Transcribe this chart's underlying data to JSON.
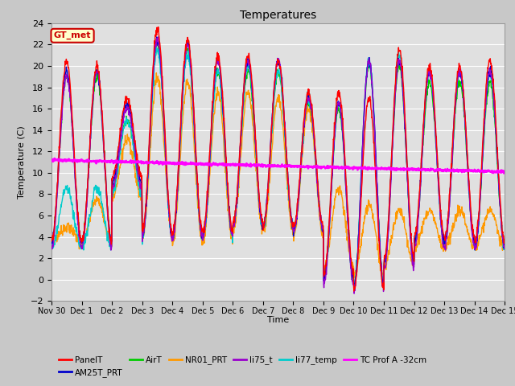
{
  "title": "Temperatures",
  "xlabel": "Time",
  "ylabel": "Temperature (C)",
  "ylim": [
    -2,
    24
  ],
  "yticks": [
    -2,
    0,
    2,
    4,
    6,
    8,
    10,
    12,
    14,
    16,
    18,
    20,
    22,
    24
  ],
  "annotation_text": "GT_met",
  "annotation_facecolor": "#ffffcc",
  "annotation_edgecolor": "#cc0000",
  "annotation_textcolor": "#cc0000",
  "fig_facecolor": "#c8c8c8",
  "ax_facecolor": "#e0e0e0",
  "grid_color": "#ffffff",
  "series_colors": {
    "PanelT": "#ff0000",
    "AM25T_PRT": "#0000cc",
    "AirT": "#00cc00",
    "NR01_PRT": "#ff9900",
    "li75_t": "#9900cc",
    "li77_temp": "#00cccc",
    "TC Prof A -32cm": "#ff00ff"
  },
  "series_linewidths": {
    "PanelT": 1.0,
    "AM25T_PRT": 1.0,
    "AirT": 1.0,
    "NR01_PRT": 1.0,
    "li75_t": 1.0,
    "li77_temp": 1.0,
    "TC Prof A -32cm": 1.8
  },
  "n_days": 15,
  "pts_per_day": 96,
  "tick_labels": [
    "Nov 30",
    "Dec 1",
    "Dec 2",
    "Dec 3",
    "Dec 4",
    "Dec 5",
    "Dec 6",
    "Dec 7",
    "Dec 8",
    "Dec 9",
    "Dec 10",
    "Dec 11",
    "Dec 12",
    "Dec 13",
    "Dec 14",
    "Dec 15"
  ],
  "legend_entries": [
    [
      "PanelT",
      "AM25T_PRT",
      "AirT",
      "NR01_PRT",
      "li75_t",
      "li77_temp"
    ],
    [
      "TC Prof A -32cm"
    ]
  ]
}
